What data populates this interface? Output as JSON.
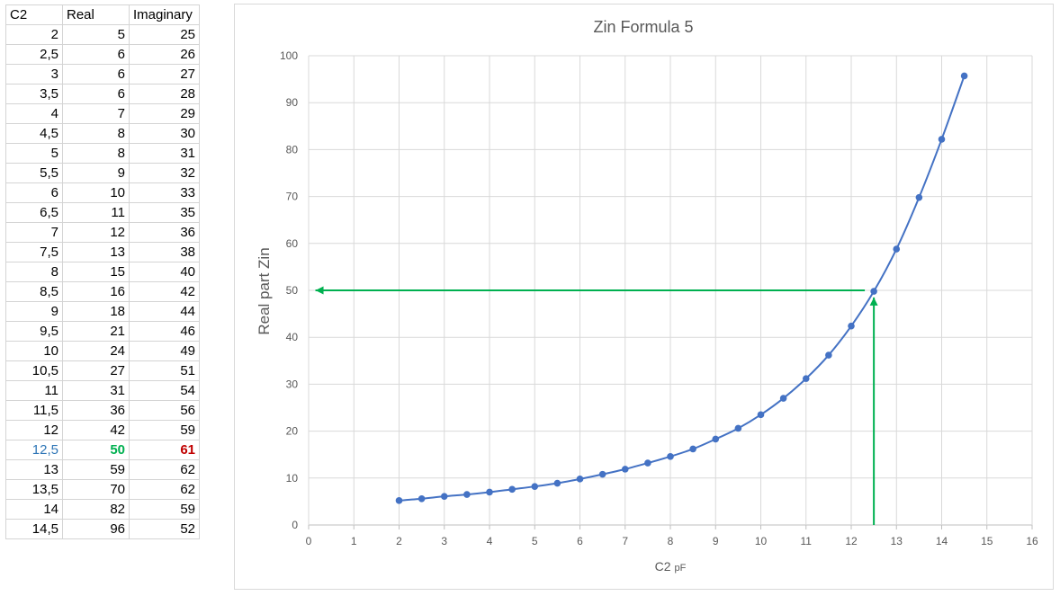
{
  "table": {
    "headers": [
      "C2",
      "Real",
      "Imaginary"
    ],
    "rows": [
      [
        "2",
        "5",
        "25"
      ],
      [
        "2,5",
        "6",
        "26"
      ],
      [
        "3",
        "6",
        "27"
      ],
      [
        "3,5",
        "6",
        "28"
      ],
      [
        "4",
        "7",
        "29"
      ],
      [
        "4,5",
        "8",
        "30"
      ],
      [
        "5",
        "8",
        "31"
      ],
      [
        "5,5",
        "9",
        "32"
      ],
      [
        "6",
        "10",
        "33"
      ],
      [
        "6,5",
        "11",
        "35"
      ],
      [
        "7",
        "12",
        "36"
      ],
      [
        "7,5",
        "13",
        "38"
      ],
      [
        "8",
        "15",
        "40"
      ],
      [
        "8,5",
        "16",
        "42"
      ],
      [
        "9",
        "18",
        "44"
      ],
      [
        "9,5",
        "21",
        "46"
      ],
      [
        "10",
        "24",
        "49"
      ],
      [
        "10,5",
        "27",
        "51"
      ],
      [
        "11",
        "31",
        "54"
      ],
      [
        "11,5",
        "36",
        "56"
      ],
      [
        "12",
        "42",
        "59"
      ],
      [
        "12,5",
        "50",
        "61"
      ],
      [
        "13",
        "59",
        "62"
      ],
      [
        "13,5",
        "70",
        "62"
      ],
      [
        "14",
        "82",
        "59"
      ],
      [
        "14,5",
        "96",
        "52"
      ]
    ],
    "highlight_row": 21,
    "colors": {
      "c2_highlight": "#2e75b6",
      "real_highlight": "#00b050",
      "imag_highlight": "#c00000"
    }
  },
  "chart_data": {
    "type": "line",
    "title": "Zin Formula 5",
    "xlabel": "C2",
    "xlabel_unit": "pF",
    "ylabel": "Real part Zin",
    "xlim": [
      0,
      16
    ],
    "ylim": [
      0,
      100
    ],
    "xticks": [
      0,
      1,
      2,
      3,
      4,
      5,
      6,
      7,
      8,
      9,
      10,
      11,
      12,
      13,
      14,
      15,
      16
    ],
    "yticks": [
      0,
      10,
      20,
      30,
      40,
      50,
      60,
      70,
      80,
      90,
      100
    ],
    "grid": true,
    "legend": "none",
    "series": [
      {
        "color": "#4472c4",
        "x": [
          2,
          2.5,
          3,
          3.5,
          4,
          4.5,
          5,
          5.5,
          6,
          6.5,
          7,
          7.5,
          8,
          8.5,
          9,
          9.5,
          10,
          10.5,
          11,
          11.5,
          12,
          12.5,
          13,
          13.5,
          14,
          14.5
        ],
        "y": [
          5.2,
          5.6,
          6.1,
          6.5,
          7.0,
          7.6,
          8.2,
          8.9,
          9.8,
          10.8,
          11.9,
          13.2,
          14.6,
          16.2,
          18.3,
          20.6,
          23.5,
          27.0,
          31.2,
          36.2,
          42.4,
          49.8,
          58.8,
          69.8,
          82.2,
          95.7
        ]
      }
    ],
    "annotations": [
      {
        "type": "arrow",
        "color": "#00b050",
        "from": [
          12.5,
          0
        ],
        "to": [
          12.5,
          48.5
        ]
      },
      {
        "type": "arrow",
        "color": "#00b050",
        "from": [
          12.3,
          50
        ],
        "to": [
          0.15,
          50
        ]
      }
    ]
  }
}
